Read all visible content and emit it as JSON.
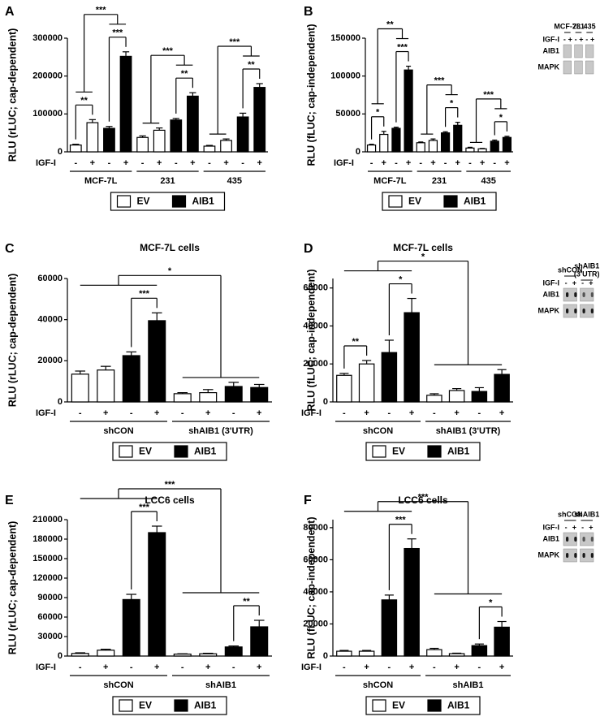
{
  "chart_data": [
    {
      "type": "bar",
      "panel": "A",
      "y_label": "RLU (rLUC; cap-dependent)",
      "ylim": [
        0,
        300000
      ],
      "yticks": [
        0,
        100000,
        200000,
        300000
      ],
      "x_label": "IGF-I",
      "categories": [
        "-",
        "+",
        "-",
        "+",
        "-",
        "+",
        "-",
        "+",
        "-",
        "+",
        "-",
        "+"
      ],
      "groups": [
        {
          "name": "MCF-7L",
          "size": 4
        },
        {
          "name": "231",
          "size": 4
        },
        {
          "name": "435",
          "size": 4
        }
      ],
      "series": [
        {
          "name": "EV",
          "color": "#ffffff",
          "values": [
            18000,
            77000,
            null,
            null,
            38000,
            57000,
            null,
            null,
            15000,
            30000,
            null,
            null
          ],
          "errors": [
            2000,
            8000,
            null,
            null,
            4000,
            6000,
            null,
            null,
            2000,
            4000,
            null,
            null
          ]
        },
        {
          "name": "AIB1",
          "color": "#000000",
          "values": [
            null,
            null,
            62000,
            252000,
            null,
            null,
            84000,
            147000,
            null,
            null,
            92000,
            170000
          ],
          "errors": [
            null,
            null,
            5000,
            12000,
            null,
            null,
            4000,
            9000,
            null,
            null,
            10000,
            10000
          ]
        }
      ],
      "brackets": [
        {
          "label": "**",
          "left": [
            0,
            0
          ],
          "right": [
            1,
            1
          ]
        },
        {
          "label": "***",
          "left": [
            2,
            2
          ],
          "right": [
            3,
            3
          ]
        },
        {
          "label": "***",
          "left": [
            0,
            1
          ],
          "right": [
            2,
            3
          ]
        },
        {
          "label": "**",
          "left": [
            6,
            6
          ],
          "right": [
            7,
            7
          ]
        },
        {
          "label": "***",
          "left": [
            4,
            5
          ],
          "right": [
            6,
            7
          ]
        },
        {
          "label": "**",
          "left": [
            10,
            10
          ],
          "right": [
            11,
            11
          ]
        },
        {
          "label": "***",
          "left": [
            8,
            9
          ],
          "right": [
            10,
            11
          ]
        }
      ]
    },
    {
      "type": "bar",
      "panel": "B",
      "y_label": "RLU (fLUC; cap-independent)",
      "ylim": [
        0,
        150000
      ],
      "yticks": [
        0,
        50000,
        100000,
        150000
      ],
      "x_label": "IGF-I",
      "categories": [
        "-",
        "+",
        "-",
        "+",
        "-",
        "+",
        "-",
        "+",
        "-",
        "+",
        "-",
        "+"
      ],
      "groups": [
        {
          "name": "MCF-7L",
          "size": 4
        },
        {
          "name": "231",
          "size": 4
        },
        {
          "name": "435",
          "size": 4
        }
      ],
      "series": [
        {
          "name": "EV",
          "color": "#ffffff",
          "values": [
            9000,
            23000,
            null,
            null,
            12000,
            15000,
            null,
            null,
            5000,
            4000,
            null,
            null
          ],
          "errors": [
            1000,
            4000,
            null,
            null,
            1000,
            2000,
            null,
            null,
            1000,
            500,
            null,
            null
          ]
        },
        {
          "name": "AIB1",
          "color": "#000000",
          "values": [
            null,
            null,
            31000,
            108000,
            null,
            null,
            25000,
            35000,
            null,
            null,
            14000,
            19000
          ],
          "errors": [
            null,
            null,
            1500,
            5000,
            null,
            null,
            1500,
            4000,
            null,
            null,
            1500,
            1500
          ]
        }
      ],
      "brackets": [
        {
          "label": "*",
          "left": [
            0,
            0
          ],
          "right": [
            1,
            1
          ]
        },
        {
          "label": "***",
          "left": [
            2,
            2
          ],
          "right": [
            3,
            3
          ]
        },
        {
          "label": "**",
          "left": [
            0,
            1
          ],
          "right": [
            2,
            3
          ]
        },
        {
          "label": "*",
          "left": [
            6,
            6
          ],
          "right": [
            7,
            7
          ]
        },
        {
          "label": "***",
          "left": [
            4,
            5
          ],
          "right": [
            6,
            7
          ]
        },
        {
          "label": "*",
          "left": [
            10,
            10
          ],
          "right": [
            11,
            11
          ]
        },
        {
          "label": "***",
          "left": [
            8,
            9
          ],
          "right": [
            10,
            11
          ]
        }
      ],
      "inset": {
        "columns": [
          [
            "MCF-7L"
          ],
          [
            "231"
          ],
          [
            "435"
          ]
        ],
        "row_label": "IGF-I",
        "signs": [
          "-",
          "+",
          "-",
          "+",
          "-",
          "+"
        ],
        "rows": [
          "AIB1",
          "MAPK"
        ]
      }
    },
    {
      "type": "bar",
      "panel": "C",
      "title": "MCF-7L cells",
      "y_label": "RLU (rLUC; cap-dependent)",
      "ylim": [
        0,
        60000
      ],
      "yticks": [
        0,
        20000,
        40000,
        60000
      ],
      "x_label": "IGF-I",
      "categories": [
        "-",
        "+",
        "-",
        "+",
        "-",
        "+",
        "-",
        "+"
      ],
      "groups": [
        {
          "name": "shCON",
          "size": 4
        },
        {
          "name": "shAIB1 (3'UTR)",
          "size": 4
        }
      ],
      "series": [
        {
          "name": "EV",
          "color": "#ffffff",
          "values": [
            13500,
            15500,
            null,
            null,
            4000,
            4500,
            null,
            null
          ],
          "errors": [
            1500,
            1800,
            null,
            null,
            500,
            1500,
            null,
            null
          ]
        },
        {
          "name": "AIB1",
          "color": "#000000",
          "values": [
            null,
            null,
            22500,
            39500,
            null,
            null,
            7500,
            7000
          ],
          "errors": [
            null,
            null,
            1800,
            3800,
            null,
            null,
            2000,
            1500
          ]
        }
      ],
      "brackets": [
        {
          "label": "***",
          "left": [
            2,
            2
          ],
          "right": [
            3,
            3
          ]
        },
        {
          "label": "*",
          "left": [
            0,
            3
          ],
          "right": [
            4,
            7
          ]
        }
      ]
    },
    {
      "type": "bar",
      "panel": "D",
      "title": "MCF-7L cells",
      "y_label": "RLU (fLUC; cap-independent)",
      "ylim": [
        0,
        65000
      ],
      "yticks": [
        0,
        20000,
        40000,
        60000
      ],
      "x_label": "IGF-I",
      "categories": [
        "-",
        "+",
        "-",
        "+",
        "-",
        "+",
        "-",
        "+"
      ],
      "groups": [
        {
          "name": "shCON",
          "size": 4
        },
        {
          "name": "shAIB1 (3'UTR)",
          "size": 4
        }
      ],
      "series": [
        {
          "name": "EV",
          "color": "#ffffff",
          "values": [
            14000,
            20000,
            null,
            null,
            3500,
            6000,
            null,
            null
          ],
          "errors": [
            1000,
            1800,
            null,
            null,
            800,
            1000,
            null,
            null
          ]
        },
        {
          "name": "AIB1",
          "color": "#000000",
          "values": [
            null,
            null,
            26000,
            47000,
            null,
            null,
            5500,
            14500
          ],
          "errors": [
            null,
            null,
            6500,
            7500,
            null,
            null,
            2000,
            2500
          ]
        }
      ],
      "brackets": [
        {
          "label": "**",
          "left": [
            0,
            0
          ],
          "right": [
            1,
            1
          ]
        },
        {
          "label": "*",
          "left": [
            2,
            2
          ],
          "right": [
            3,
            3
          ]
        },
        {
          "label": "*",
          "left": [
            0,
            3
          ],
          "right": [
            4,
            7
          ]
        }
      ],
      "inset": {
        "columns": [
          [
            "shCON"
          ],
          [
            "shAIB1",
            "(3'UTR)"
          ]
        ],
        "row_label": "IGF-I",
        "signs": [
          "-",
          "+",
          "-",
          "+"
        ],
        "rows": [
          "AIB1",
          "MAPK"
        ]
      }
    },
    {
      "type": "bar",
      "panel": "E",
      "title": "LCC6 cells",
      "y_label": "RLU (rLUC; cap-dependent)",
      "ylim": [
        0,
        210000
      ],
      "yticks": [
        0,
        30000,
        60000,
        90000,
        120000,
        150000,
        180000,
        210000
      ],
      "x_label": "IGF-I",
      "categories": [
        "-",
        "+",
        "-",
        "+",
        "-",
        "+",
        "-",
        "+"
      ],
      "groups": [
        {
          "name": "shCON",
          "size": 4
        },
        {
          "name": "shAIB1",
          "size": 4
        }
      ],
      "series": [
        {
          "name": "EV",
          "color": "#ffffff",
          "values": [
            4000,
            9000,
            null,
            null,
            3000,
            3500,
            null,
            null
          ],
          "errors": [
            1000,
            1500,
            null,
            null,
            500,
            800,
            null,
            null
          ]
        },
        {
          "name": "AIB1",
          "color": "#000000",
          "values": [
            null,
            null,
            87000,
            190000,
            null,
            null,
            14000,
            45000
          ],
          "errors": [
            null,
            null,
            8000,
            10000,
            null,
            null,
            1500,
            10000
          ]
        }
      ],
      "brackets": [
        {
          "label": "***",
          "left": [
            2,
            2
          ],
          "right": [
            3,
            3
          ]
        },
        {
          "label": "**",
          "left": [
            6,
            6
          ],
          "right": [
            7,
            7
          ]
        },
        {
          "label": "***",
          "left": [
            0,
            3
          ],
          "right": [
            4,
            7
          ]
        }
      ]
    },
    {
      "type": "bar",
      "panel": "F",
      "title": "LCC6 cells",
      "y_label": "RLU (fLUC; cap-independent)",
      "ylim": [
        0,
        85000
      ],
      "yticks": [
        0,
        20000,
        40000,
        60000,
        80000
      ],
      "x_label": "IGF-I",
      "categories": [
        "-",
        "+",
        "-",
        "+",
        "-",
        "+",
        "-",
        "+"
      ],
      "groups": [
        {
          "name": "shCON",
          "size": 4
        },
        {
          "name": "shAIB1",
          "size": 4
        }
      ],
      "series": [
        {
          "name": "EV",
          "color": "#ffffff",
          "values": [
            3000,
            3000,
            null,
            null,
            4000,
            1500,
            null,
            null
          ],
          "errors": [
            500,
            500,
            null,
            null,
            800,
            300,
            null,
            null
          ]
        },
        {
          "name": "AIB1",
          "color": "#000000",
          "values": [
            null,
            null,
            35000,
            67000,
            null,
            null,
            6500,
            18000
          ],
          "errors": [
            null,
            null,
            3000,
            6000,
            null,
            null,
            1000,
            3500
          ]
        }
      ],
      "brackets": [
        {
          "label": "***",
          "left": [
            2,
            2
          ],
          "right": [
            3,
            3
          ]
        },
        {
          "label": "*",
          "left": [
            6,
            6
          ],
          "right": [
            7,
            7
          ]
        },
        {
          "label": "***",
          "left": [
            0,
            3
          ],
          "right": [
            4,
            7
          ]
        }
      ],
      "inset": {
        "columns": [
          [
            "shCON"
          ],
          [
            "shAIB1"
          ]
        ],
        "row_label": "IGF-I",
        "signs": [
          "-",
          "+",
          "-",
          "+"
        ],
        "rows": [
          "AIB1",
          "MAPK"
        ]
      }
    }
  ]
}
